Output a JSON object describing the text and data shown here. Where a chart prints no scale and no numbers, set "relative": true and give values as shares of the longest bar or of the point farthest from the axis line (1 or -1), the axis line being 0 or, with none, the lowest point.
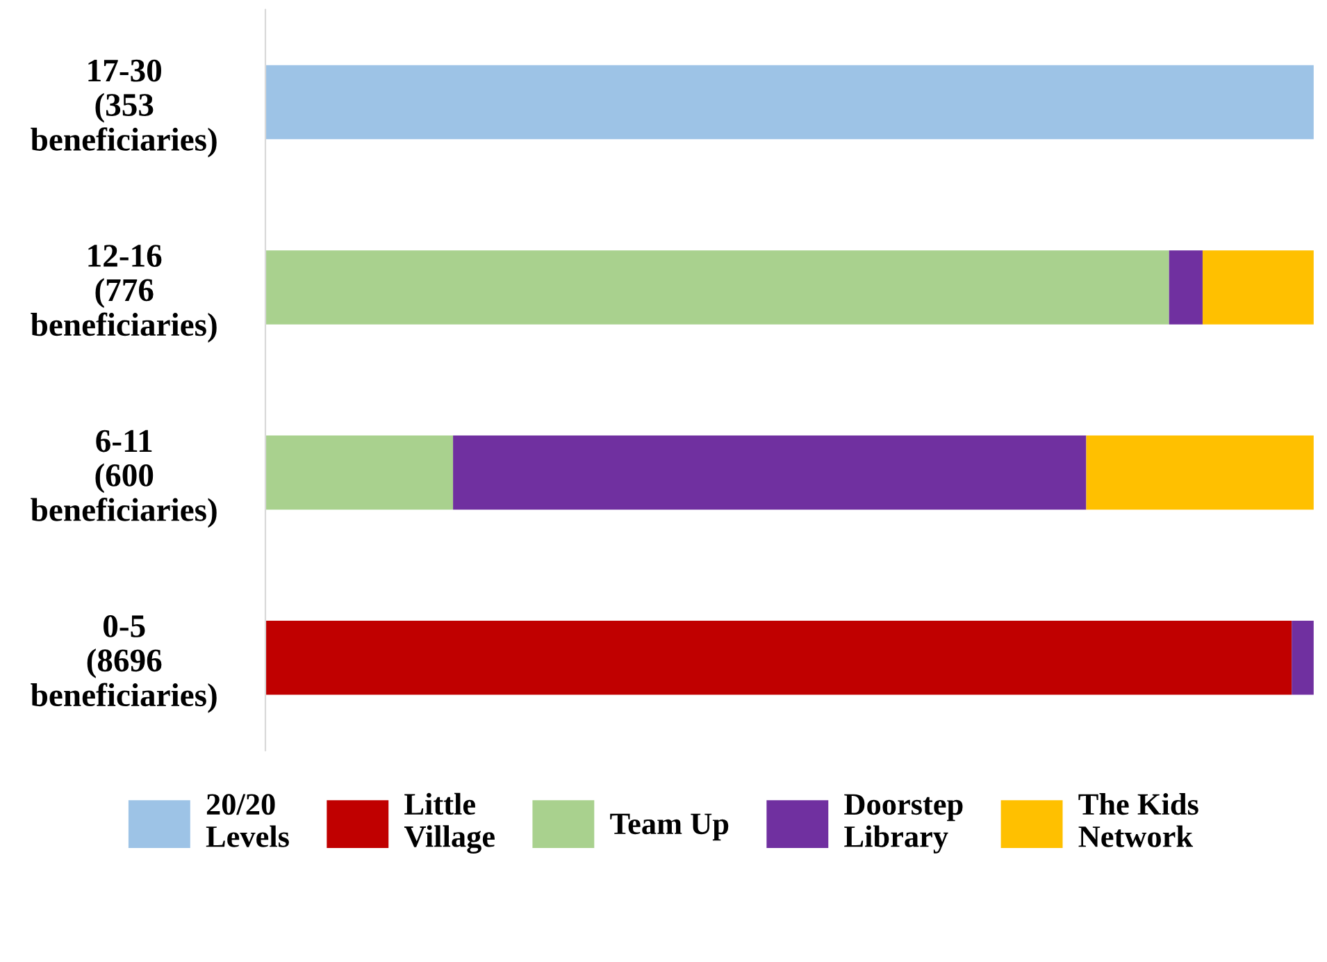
{
  "chart_data": {
    "type": "bar",
    "orientation": "horizontal",
    "stacked": true,
    "relative": true,
    "legend": "bottom",
    "grid": false,
    "categories": [
      "17-30\n(353\nbeneficiaries)",
      "12-16\n(776\nbeneficiaries)",
      "6-11\n(600\nbeneficiaries)",
      "0-5\n(8696\nbeneficiaries)"
    ],
    "series": [
      {
        "name": "20/20\nLevels",
        "color": "#9dc3e6",
        "values": [
          1.0,
          null,
          null,
          null
        ]
      },
      {
        "name": "Little\nVillage",
        "color": "#c00000",
        "values": [
          null,
          null,
          null,
          0.979
        ]
      },
      {
        "name": "Team Up",
        "color": "#a9d18e",
        "values": [
          null,
          0.862,
          0.179,
          null
        ]
      },
      {
        "name": "Doorstep\nLibrary",
        "color": "#7030a0",
        "values": [
          null,
          0.032,
          0.604,
          0.021
        ]
      },
      {
        "name": "The Kids\nNetwork",
        "color": "#ffc000",
        "values": [
          null,
          0.106,
          0.217,
          null
        ]
      }
    ]
  }
}
